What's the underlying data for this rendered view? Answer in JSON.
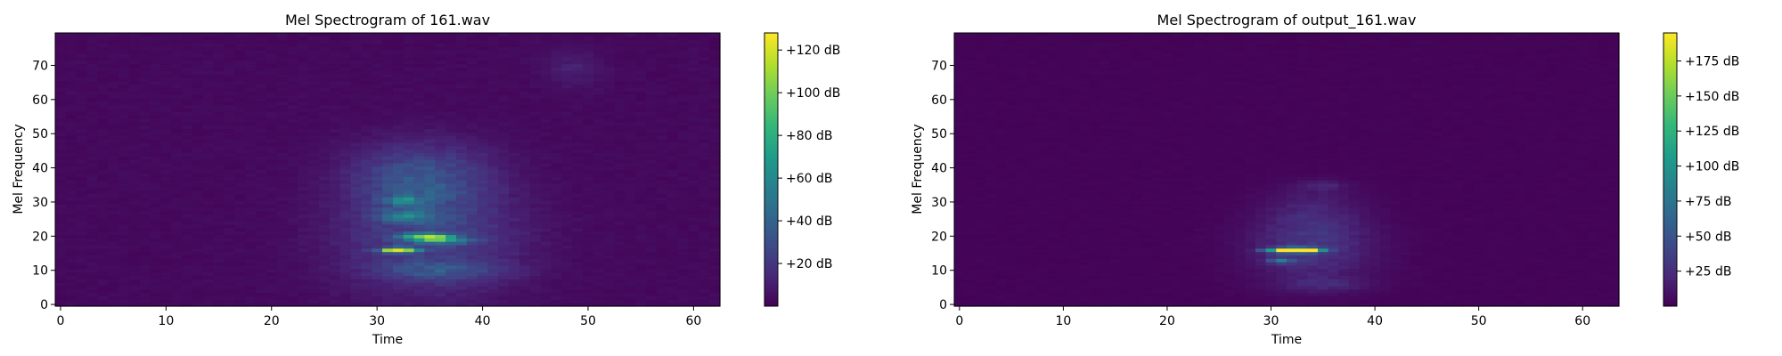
{
  "chart_data": [
    {
      "type": "heatmap",
      "title": "Mel Spectrogram of 161.wav",
      "xlabel": "Time",
      "ylabel": "Mel Frequency",
      "xlim": [
        -0.5,
        62.5
      ],
      "ylim": [
        -0.5,
        79.5
      ],
      "xticks": [
        0,
        10,
        20,
        30,
        40,
        50,
        60
      ],
      "yticks": [
        0,
        10,
        20,
        30,
        40,
        50,
        60,
        70
      ],
      "colorbar": {
        "min": 0,
        "max": 128,
        "ticks": [
          20,
          40,
          60,
          80,
          100,
          120
        ],
        "tick_labels": [
          "+20 dB",
          "+40 dB",
          "+60 dB",
          "+80 dB",
          "+100 dB",
          "+120 dB"
        ]
      },
      "colormap": "viridis",
      "n_time": 63,
      "n_mel": 80,
      "blobs": [
        {
          "t": 35,
          "f": 20,
          "st": 6,
          "sf": 12,
          "a": 22
        },
        {
          "t": 34,
          "f": 35,
          "st": 4,
          "sf": 6,
          "a": 20
        },
        {
          "t": 32,
          "f": 16,
          "st": 1.2,
          "sf": 0.5,
          "a": 105
        },
        {
          "t": 34.5,
          "f": 20,
          "st": 1.5,
          "sf": 0.6,
          "a": 80
        },
        {
          "t": 36,
          "f": 19,
          "st": 2,
          "sf": 0.8,
          "a": 50
        },
        {
          "t": 32.5,
          "f": 30.5,
          "st": 1.2,
          "sf": 0.7,
          "a": 45
        },
        {
          "t": 33,
          "f": 26,
          "st": 2,
          "sf": 1.5,
          "a": 30
        },
        {
          "t": 36,
          "f": 10,
          "st": 4,
          "sf": 2,
          "a": 18
        },
        {
          "t": 48.5,
          "f": 69,
          "st": 2,
          "sf": 4,
          "a": 8
        },
        {
          "t": 34,
          "f": 42,
          "st": 5,
          "sf": 6,
          "a": 10
        }
      ],
      "background": 3
    },
    {
      "type": "heatmap",
      "title": "Mel Spectrogram of output_161.wav",
      "xlabel": "Time",
      "ylabel": "Mel Frequency",
      "xlim": [
        -0.5,
        63.5
      ],
      "ylim": [
        -0.5,
        79.5
      ],
      "xticks": [
        0,
        10,
        20,
        30,
        40,
        50,
        60
      ],
      "yticks": [
        0,
        10,
        20,
        30,
        40,
        50,
        60,
        70
      ],
      "colorbar": {
        "min": 0,
        "max": 195,
        "ticks": [
          25,
          50,
          75,
          100,
          125,
          150,
          175
        ],
        "tick_labels": [
          "+25 dB",
          "+50 dB",
          "+75 dB",
          "+100 dB",
          "+125 dB",
          "+150 dB",
          "+175 dB"
        ]
      },
      "colormap": "viridis",
      "n_time": 64,
      "n_mel": 80,
      "blobs": [
        {
          "t": 34,
          "f": 17,
          "st": 4,
          "sf": 7,
          "a": 28
        },
        {
          "t": 32,
          "f": 16,
          "st": 1.3,
          "sf": 0.5,
          "a": 170
        },
        {
          "t": 30.5,
          "f": 16,
          "st": 1,
          "sf": 0.5,
          "a": 60
        },
        {
          "t": 34,
          "f": 16,
          "st": 1,
          "sf": 0.5,
          "a": 90
        },
        {
          "t": 31,
          "f": 13,
          "st": 1,
          "sf": 0.6,
          "a": 55
        },
        {
          "t": 34,
          "f": 28,
          "st": 3,
          "sf": 5,
          "a": 12
        },
        {
          "t": 35,
          "f": 35,
          "st": 1.5,
          "sf": 1,
          "a": 15
        },
        {
          "t": 35,
          "f": 6,
          "st": 3,
          "sf": 1.5,
          "a": 15
        }
      ],
      "background": 2
    }
  ]
}
